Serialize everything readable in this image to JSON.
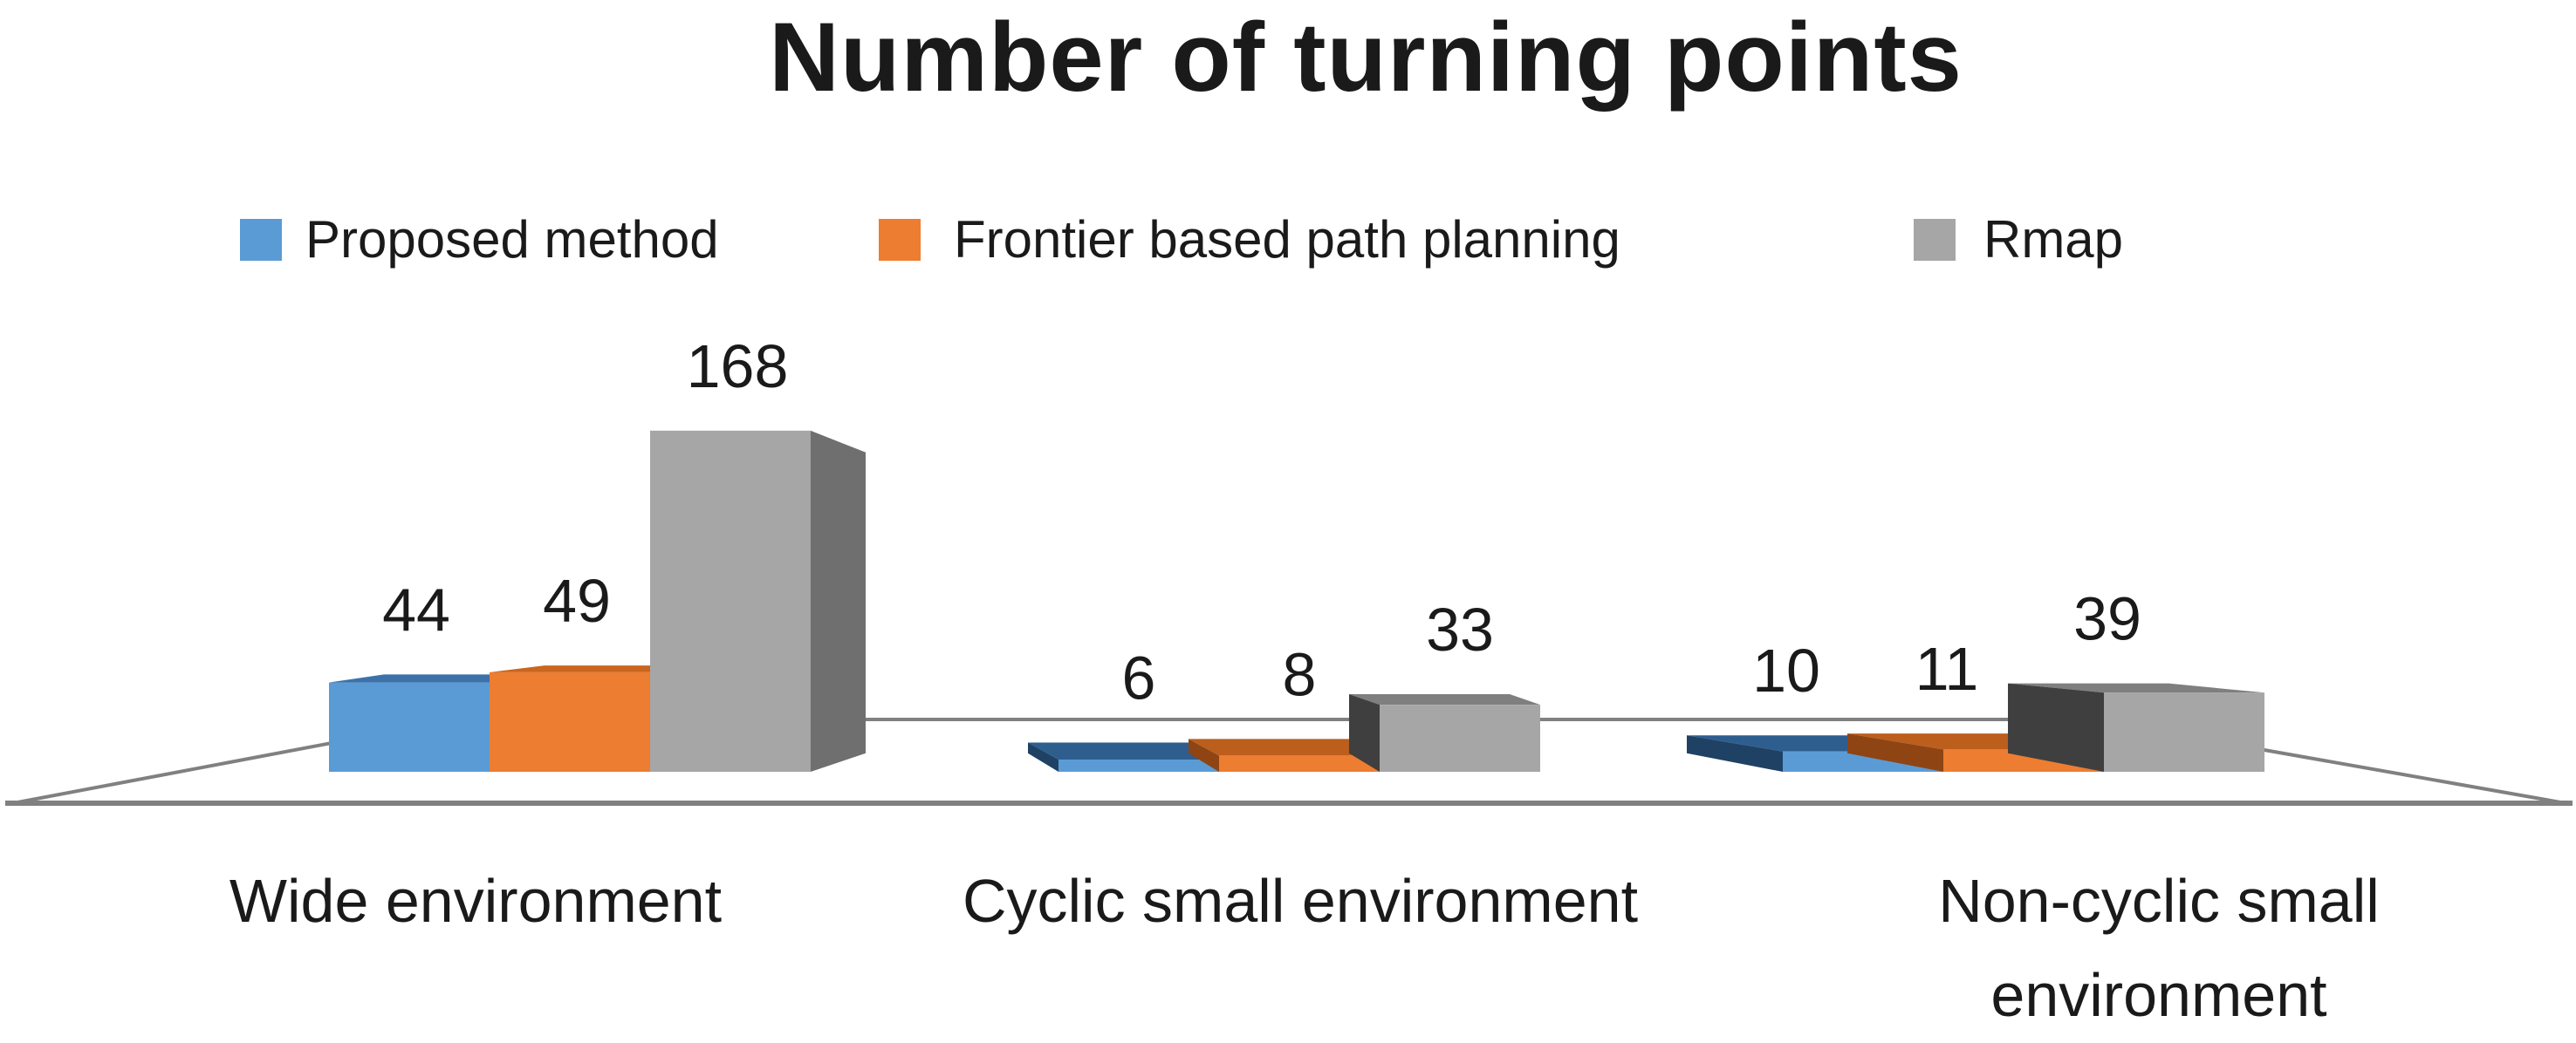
{
  "title": "Number of turning points",
  "chart_data": {
    "type": "bar",
    "style": "3d-clustered-column",
    "title": "Number of turning points",
    "categories": [
      "Wide environment",
      "Cyclic small environment",
      "Non-cyclic small environment"
    ],
    "series": [
      {
        "name": "Proposed method",
        "color": "#5B9BD5",
        "values": [
          44,
          6,
          10
        ]
      },
      {
        "name": "Frontier based path planning",
        "color": "#ED7D31",
        "values": [
          49,
          8,
          11
        ]
      },
      {
        "name": "Rmap",
        "color": "#A6A6A6",
        "values": [
          168,
          33,
          39
        ]
      }
    ],
    "value_labels_shown": true,
    "legend_position": "top",
    "xlabel": "",
    "ylabel": "",
    "y_axis_visible": false,
    "gridlines": false,
    "floor_line_color": "#808080",
    "background": "#FFFFFF",
    "text_color": "#1A1A1A"
  }
}
